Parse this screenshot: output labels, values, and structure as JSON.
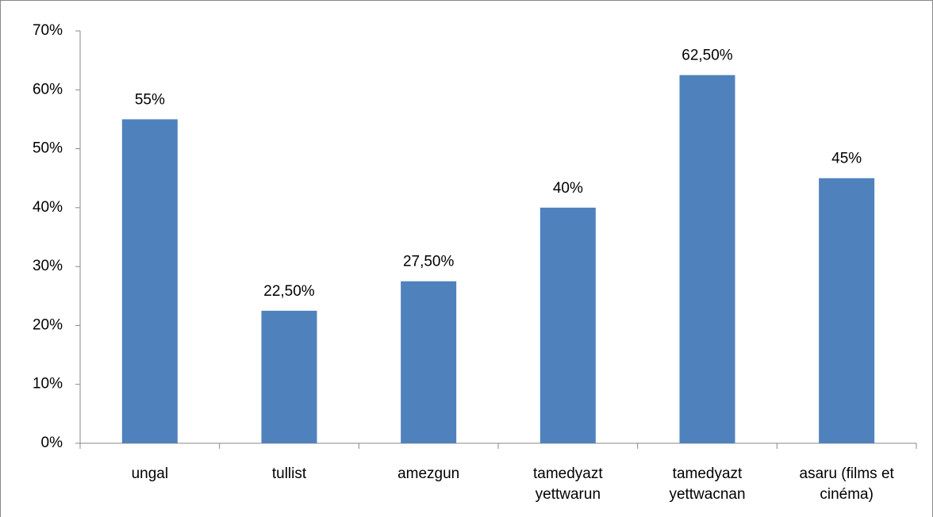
{
  "chart_data": {
    "type": "bar",
    "categories": [
      "ungal",
      "tullist",
      "amezgun",
      "tamedyazt yettwarun",
      "tamedyazt yettwacnan",
      "asaru (films et cinéma)"
    ],
    "values": [
      55,
      22.5,
      27.5,
      40,
      62.5,
      45
    ],
    "value_labels": [
      "55%",
      "22,50%",
      "27,50%",
      "40%",
      "62,50%",
      "45%"
    ],
    "color": "#4f81bd",
    "ylim": [
      0,
      70
    ],
    "yticks": [
      {
        "value": 0,
        "label": "0%"
      },
      {
        "value": 10,
        "label": "10%"
      },
      {
        "value": 20,
        "label": "20%"
      },
      {
        "value": 30,
        "label": "30%"
      },
      {
        "value": 40,
        "label": "40%"
      },
      {
        "value": 50,
        "label": "50%"
      },
      {
        "value": 60,
        "label": "60%"
      },
      {
        "value": 70,
        "label": "70%"
      }
    ],
    "grid": false
  }
}
